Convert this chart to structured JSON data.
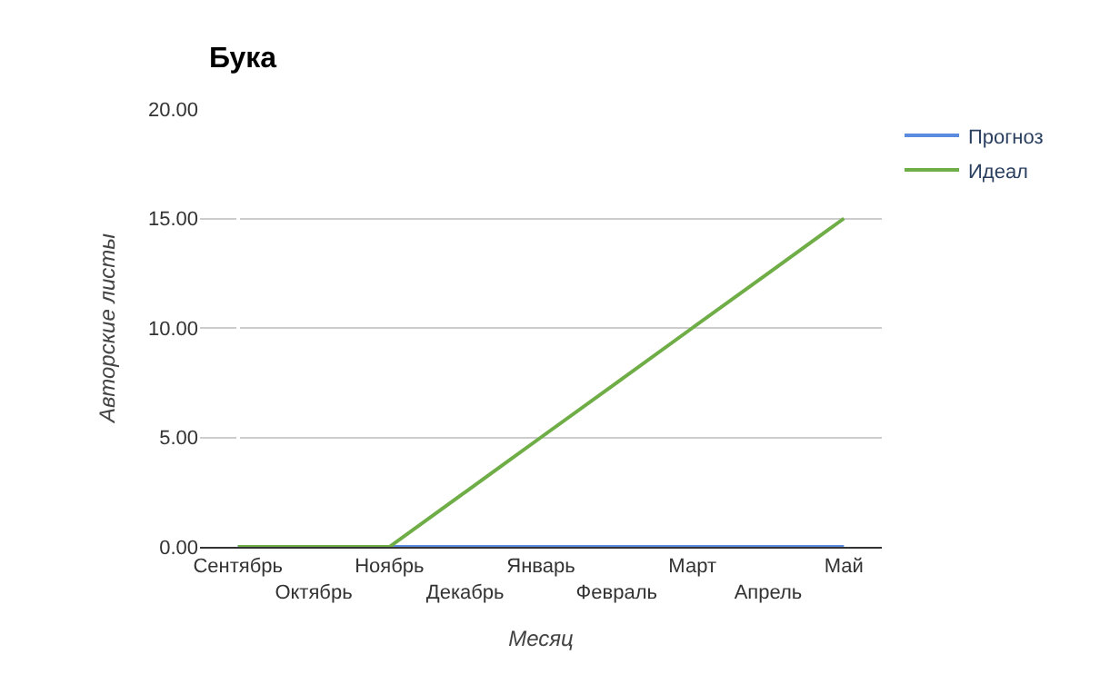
{
  "chart_data": {
    "type": "line",
    "title": "Бука",
    "xlabel": "Месяц",
    "ylabel": "Авторские листы",
    "categories": [
      "Сентябрь",
      "Октябрь",
      "Ноябрь",
      "Декабрь",
      "Январь",
      "Февраль",
      "Март",
      "Апрель",
      "Май"
    ],
    "series": [
      {
        "name": "Прогноз",
        "color": "#5b8ce0",
        "values": [
          0,
          0,
          0,
          0,
          0,
          0,
          0,
          0,
          0
        ]
      },
      {
        "name": "Идеал",
        "color": "#6fad47",
        "values": [
          0,
          0,
          0,
          2.5,
          5,
          7.5,
          10,
          12.5,
          15
        ]
      }
    ],
    "ylim": [
      0,
      20
    ],
    "yticks": [
      {
        "value": 0,
        "label": "0.00"
      },
      {
        "value": 5,
        "label": "5.00"
      },
      {
        "value": 10,
        "label": "10.00"
      },
      {
        "value": 15,
        "label": "15.00"
      },
      {
        "value": 20,
        "label": "20.00"
      }
    ],
    "grid": "y",
    "legend": "top right",
    "marker": "none",
    "line_style": "solid"
  }
}
